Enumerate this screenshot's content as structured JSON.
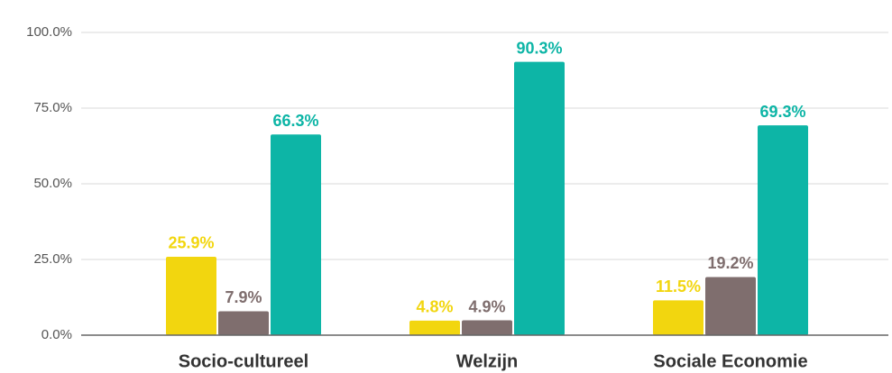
{
  "chart_data": {
    "type": "bar",
    "categories": [
      "Socio-cultureel",
      "Welzijn",
      "Sociale Economie"
    ],
    "series": [
      {
        "color": "#f2d60f",
        "values": [
          25.9,
          4.8,
          11.5
        ],
        "value_labels": [
          "25.9%",
          "4.8%",
          "11.5%"
        ]
      },
      {
        "color": "#7f6e6e",
        "values": [
          7.9,
          4.9,
          19.2
        ],
        "value_labels": [
          "7.9%",
          "4.9%",
          "19.2%"
        ]
      },
      {
        "color": "#0db5a6",
        "values": [
          66.3,
          90.3,
          69.3
        ],
        "value_labels": [
          "66.3%",
          "90.3%",
          "69.3%"
        ]
      }
    ],
    "ylim": [
      0,
      100
    ],
    "yticks": [
      {
        "value": 0,
        "label": "0.0%"
      },
      {
        "value": 25,
        "label": "25.0%"
      },
      {
        "value": 50,
        "label": "50.0%"
      },
      {
        "value": 75,
        "label": "75.0%"
      },
      {
        "value": 100,
        "label": "100.0%"
      }
    ],
    "grid": true
  }
}
